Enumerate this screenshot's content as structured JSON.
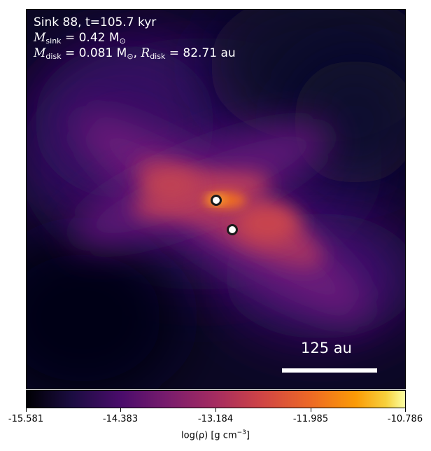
{
  "header": {
    "sink_line": "Sink 88, t=105.7 kyr",
    "msink_sym": "M",
    "msink_sub": "sink",
    "msink_val": " = 0.42 M",
    "msink_sun": "⊙",
    "mdisk_sym": "M",
    "mdisk_sub": "disk",
    "mdisk_val": " = 0.081 M",
    "mdisk_sun": "⊙",
    "rdisk_sep": ", ",
    "rdisk_sym": "R",
    "rdisk_sub": "disk",
    "rdisk_val": " = 82.71 au"
  },
  "scalebar": {
    "label": "125 au"
  },
  "colorbar": {
    "colormap": "inferno",
    "ticks": [
      "-15.581",
      "-14.383",
      "-13.184",
      "-11.985",
      "-10.786"
    ],
    "label_main": "log(ρ) [g cm",
    "label_exp": "−3",
    "label_end": "]"
  },
  "sinks": [
    {
      "name": "sink-particle-1"
    },
    {
      "name": "sink-particle-2"
    }
  ]
}
